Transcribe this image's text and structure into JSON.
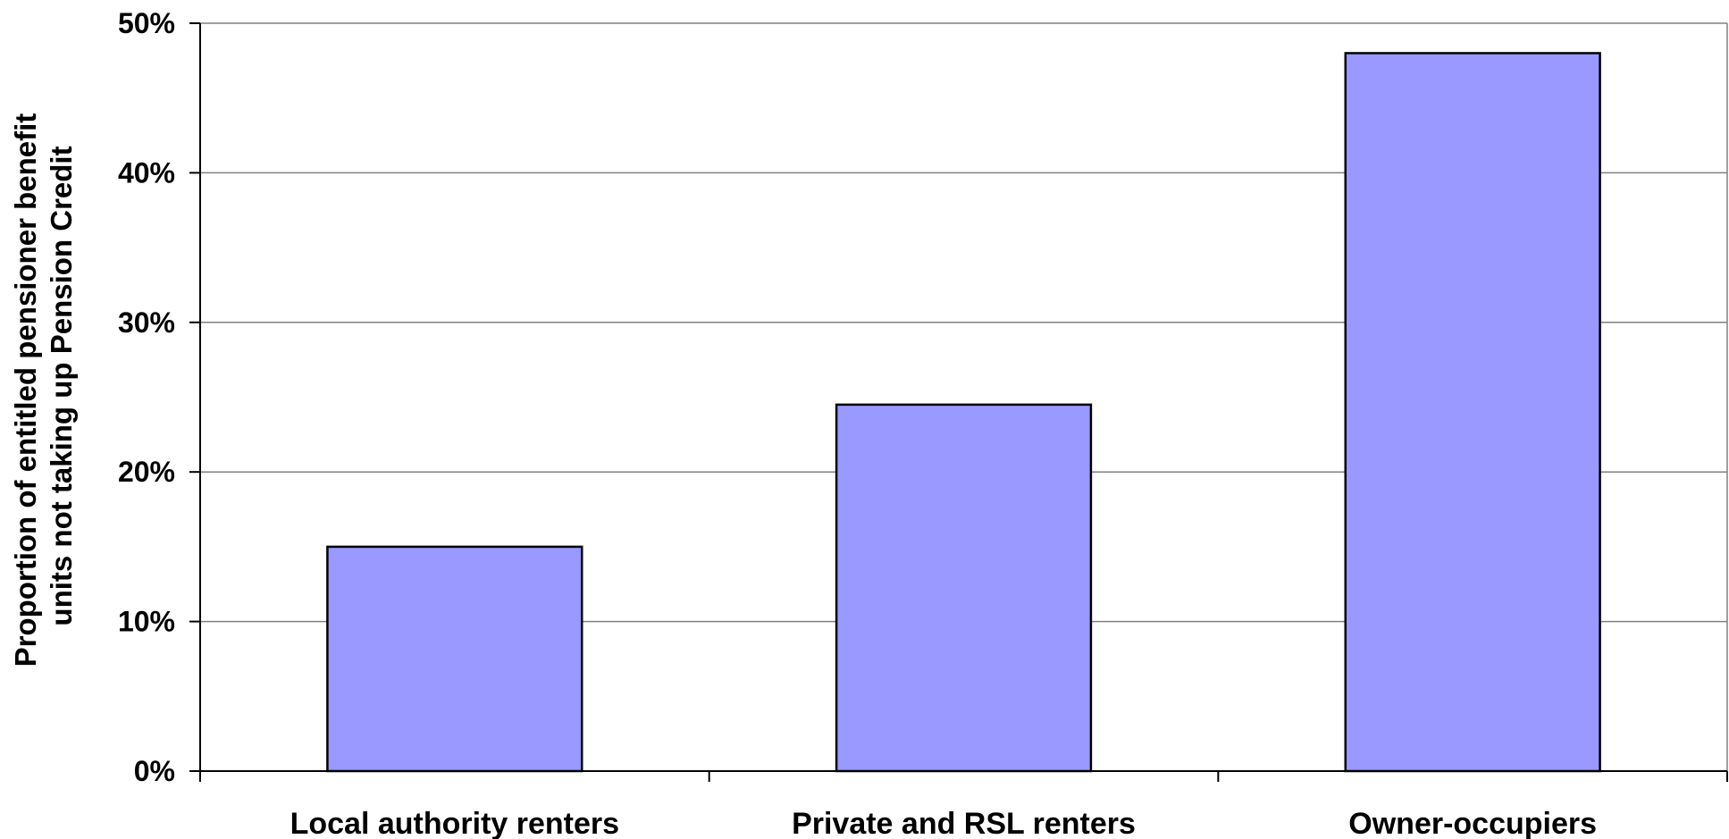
{
  "chart_data": {
    "type": "bar",
    "categories": [
      "Local authority renters",
      "Private and RSL renters",
      "Owner-occupiers"
    ],
    "values": [
      0.15,
      0.245,
      0.48
    ],
    "title": "",
    "xlabel": "",
    "ylabel_lines": [
      "Proportion of entitled pensioner benefit",
      "units not taking up Pension Credit"
    ],
    "ylim": [
      0,
      0.5
    ],
    "yticks": [
      0,
      0.1,
      0.2,
      0.3,
      0.4,
      0.5
    ],
    "ytick_labels": [
      "0%",
      "10%",
      "20%",
      "30%",
      "40%",
      "50%"
    ],
    "grid": true,
    "legend": "none",
    "bar_color": "#9999ff",
    "bar_edge_color": "#000000"
  }
}
